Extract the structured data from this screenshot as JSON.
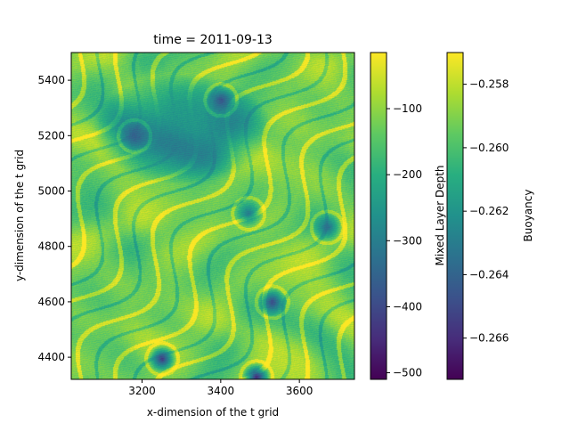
{
  "chart_data": [
    {
      "type": "heatmap",
      "title": "time = 2011-09-13",
      "xlabel": "x-dimension of the t grid",
      "ylabel": "y-dimension of the t grid",
      "xlim": [
        3020,
        3740
      ],
      "ylim": [
        4320,
        5500
      ],
      "x_ticks": [
        3200,
        3400,
        3600
      ],
      "y_ticks": [
        4400,
        4600,
        4800,
        5000,
        5200,
        5400
      ],
      "colormap": "viridis",
      "features": {
        "background_level": 0.78,
        "dark_region_north": {
          "x": [
            3100,
            3500
          ],
          "y": [
            5050,
            5400
          ],
          "level": 0.42
        },
        "dark_eddies": [
          {
            "x": 3250,
            "y": 4395,
            "level": 0.15
          },
          {
            "x": 3530,
            "y": 4600,
            "level": 0.22
          },
          {
            "x": 3490,
            "y": 4330,
            "level": 0.1
          },
          {
            "x": 3400,
            "y": 5330,
            "level": 0.25
          },
          {
            "x": 3180,
            "y": 5200,
            "level": 0.3
          },
          {
            "x": 3470,
            "y": 4920,
            "level": 0.4
          },
          {
            "x": 3670,
            "y": 4870,
            "level": 0.35
          }
        ]
      }
    },
    {
      "type": "colorbar",
      "label": "Mixed Layer Depth",
      "range": [
        -510,
        -15
      ],
      "ticks": [
        "−100",
        "−200",
        "−300",
        "−400",
        "−500"
      ],
      "tick_values": [
        -100,
        -200,
        -300,
        -400,
        -500
      ]
    },
    {
      "type": "colorbar",
      "label": "Buoyancy",
      "range": [
        -0.2673,
        -0.257
      ],
      "ticks": [
        "−0.258",
        "−0.260",
        "−0.262",
        "−0.264",
        "−0.266"
      ],
      "tick_values": [
        -0.258,
        -0.26,
        -0.262,
        -0.264,
        -0.266
      ]
    }
  ]
}
